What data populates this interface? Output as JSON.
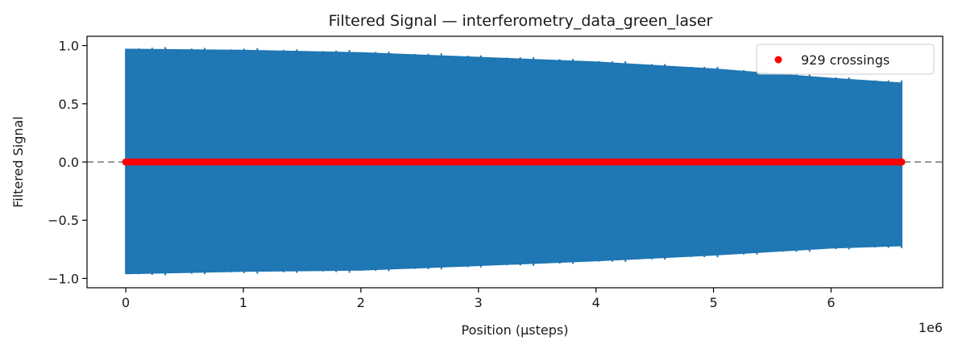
{
  "chart_data": {
    "type": "line",
    "title": "Filtered Signal — interferometry_data_green_laser",
    "xlabel": "Position (µsteps)",
    "ylabel": "Filtered Signal",
    "x_offset_label": "1e6",
    "xlim": [
      -0.33,
      6.95
    ],
    "ylim": [
      -1.08,
      1.08
    ],
    "x_ticks": [
      0,
      1,
      2,
      3,
      4,
      5,
      6
    ],
    "y_ticks": [
      -1.0,
      -0.5,
      0.0,
      0.5,
      1.0
    ],
    "y_tick_labels": [
      "−1.0",
      "−0.5",
      "0.0",
      "0.5",
      "1.0"
    ],
    "grid": false,
    "legend_position": "top-right",
    "series": [
      {
        "kind": "filled-envelope",
        "color": "#1f77b4",
        "x": [
          0.0,
          1.0,
          2.0,
          3.0,
          4.0,
          5.0,
          6.0,
          6.6
        ],
        "upper": [
          0.97,
          0.96,
          0.94,
          0.9,
          0.86,
          0.8,
          0.72,
          0.68
        ],
        "lower": [
          -0.96,
          -0.94,
          -0.93,
          -0.89,
          -0.85,
          -0.8,
          -0.74,
          -0.72
        ]
      },
      {
        "kind": "markers",
        "name": "929 crossings",
        "color": "#ff0000",
        "x_start": 0.0,
        "x_end": 6.6,
        "y": 0.0,
        "count": 929
      }
    ],
    "reference_line": {
      "y": 0.0,
      "style": "dashed",
      "color": "#999999"
    }
  }
}
